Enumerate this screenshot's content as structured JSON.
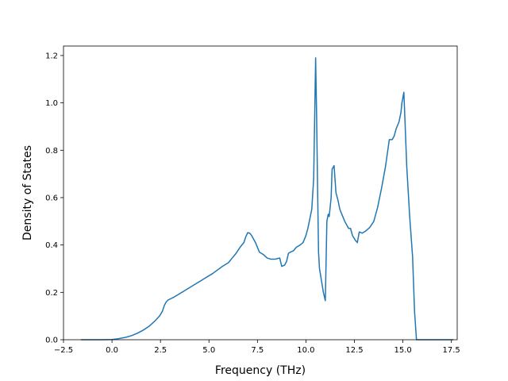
{
  "chart_data": {
    "type": "line",
    "title": "",
    "xlabel": "Frequency (THz)",
    "ylabel": "Density of States",
    "xlim": [
      -2.5,
      17.8
    ],
    "ylim": [
      0.0,
      1.24
    ],
    "x_ticks": [
      -2.5,
      0.0,
      2.5,
      5.0,
      7.5,
      10.0,
      12.5,
      15.0,
      17.5
    ],
    "x_tick_labels": [
      "−2.5",
      "0.0",
      "2.5",
      "5.0",
      "7.5",
      "10.0",
      "12.5",
      "15.0",
      "17.5"
    ],
    "y_ticks": [
      0.0,
      0.2,
      0.4,
      0.6,
      0.8,
      1.0,
      1.2
    ],
    "y_tick_labels": [
      "0.0",
      "0.2",
      "0.4",
      "0.6",
      "0.8",
      "1.0",
      "1.2"
    ],
    "grid": false,
    "line_color": "#1f77b4",
    "series": [
      {
        "x": [
          -1.6,
          -0.5,
          0.0,
          0.3,
          0.7,
          1.0,
          1.3,
          1.6,
          1.9,
          2.2,
          2.45,
          2.6,
          2.7,
          2.8,
          2.9,
          3.2,
          3.7,
          4.2,
          4.7,
          5.2,
          5.7,
          6.0,
          6.2,
          6.4,
          6.6,
          6.8,
          6.9,
          7.0,
          7.1,
          7.2,
          7.4,
          7.6,
          7.8,
          8.0,
          8.2,
          8.4,
          8.55,
          8.65,
          8.75,
          8.9,
          9.0,
          9.1,
          9.2,
          9.35,
          9.5,
          9.6,
          9.7,
          9.85,
          10.0,
          10.1,
          10.2,
          10.3,
          10.4,
          10.5,
          10.55,
          10.6,
          10.65,
          10.7,
          10.8,
          10.9,
          11.0,
          11.08,
          11.15,
          11.2,
          11.3,
          11.35,
          11.45,
          11.55,
          11.65,
          11.75,
          11.9,
          12.0,
          12.2,
          12.3,
          12.4,
          12.55,
          12.65,
          12.75,
          12.9,
          13.1,
          13.3,
          13.5,
          13.7,
          13.9,
          14.1,
          14.3,
          14.45,
          14.55,
          14.65,
          14.8,
          14.9,
          14.95,
          15.05,
          15.2,
          15.35,
          15.5,
          15.6,
          15.7,
          15.85,
          16.0,
          16.1,
          16.15,
          16.3,
          16.8,
          17.6
        ],
        "y": [
          0.0,
          0.0,
          0.001,
          0.004,
          0.01,
          0.017,
          0.027,
          0.04,
          0.056,
          0.078,
          0.1,
          0.12,
          0.145,
          0.16,
          0.168,
          0.18,
          0.205,
          0.23,
          0.255,
          0.28,
          0.31,
          0.325,
          0.345,
          0.365,
          0.39,
          0.41,
          0.435,
          0.452,
          0.45,
          0.44,
          0.41,
          0.37,
          0.36,
          0.345,
          0.34,
          0.34,
          0.343,
          0.345,
          0.31,
          0.315,
          0.33,
          0.365,
          0.37,
          0.375,
          0.39,
          0.395,
          0.4,
          0.41,
          0.44,
          0.47,
          0.51,
          0.55,
          0.68,
          1.19,
          0.95,
          0.65,
          0.37,
          0.3,
          0.25,
          0.2,
          0.165,
          0.5,
          0.53,
          0.52,
          0.6,
          0.72,
          0.735,
          0.62,
          0.59,
          0.55,
          0.52,
          0.5,
          0.47,
          0.47,
          0.44,
          0.42,
          0.41,
          0.455,
          0.45,
          0.46,
          0.475,
          0.5,
          0.56,
          0.64,
          0.73,
          0.845,
          0.845,
          0.86,
          0.89,
          0.92,
          0.96,
          1.0,
          1.045,
          0.73,
          0.52,
          0.35,
          0.12,
          0.0,
          0.0,
          0.0,
          0.0,
          0.0,
          0.0,
          0.0,
          0.0
        ]
      }
    ]
  }
}
